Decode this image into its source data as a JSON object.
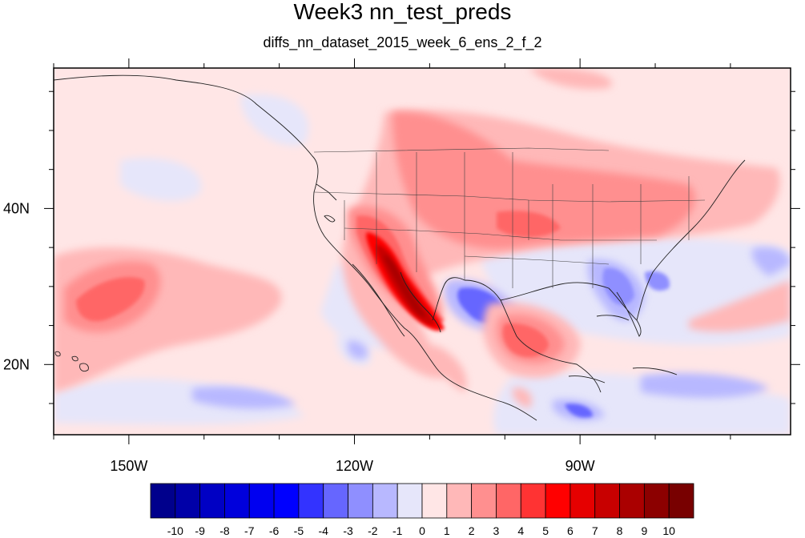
{
  "title": "Week3 nn_test_preds",
  "subtitle": "diffs_nn_dataset_2015_week_6_ens_2_f_2",
  "map": {
    "lon_range": [
      -160,
      -62
    ],
    "lat_range": [
      11,
      58
    ],
    "x_ticks": [
      {
        "lon": -150,
        "label": "150W"
      },
      {
        "lon": -120,
        "label": "120W"
      },
      {
        "lon": -90,
        "label": "90W"
      }
    ],
    "y_ticks": [
      {
        "lat": 40,
        "label": "40N"
      },
      {
        "lat": 20,
        "label": "20N"
      }
    ],
    "background_color": "#ffe6e6"
  },
  "colorbar": {
    "labels": [
      "-10",
      "-9",
      "-8",
      "-7",
      "-6",
      "-5",
      "-4",
      "-3",
      "-2",
      "-1",
      "0",
      "1",
      "2",
      "3",
      "4",
      "5",
      "6",
      "7",
      "8",
      "9",
      "10"
    ],
    "colors": [
      "#00008c",
      "#0000a8",
      "#0000c4",
      "#0000dc",
      "#0000f0",
      "#0000ff",
      "#3333ff",
      "#6666ff",
      "#8f8fff",
      "#b8b8ff",
      "#e6e6fa",
      "#ffe6e6",
      "#ffb8b8",
      "#ff8f8f",
      "#ff6666",
      "#ff3333",
      "#ff0000",
      "#e60000",
      "#c80000",
      "#aa0000",
      "#8c0000",
      "#780000"
    ]
  }
}
